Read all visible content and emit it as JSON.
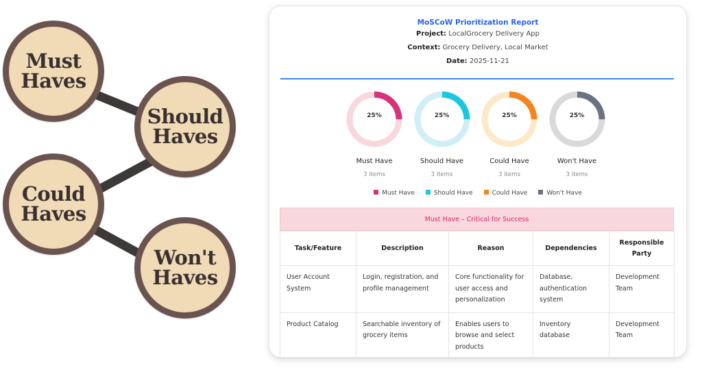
{
  "diagram": {
    "bubbles": [
      {
        "line1": "Must",
        "line2": "Haves"
      },
      {
        "line1": "Should",
        "line2": "Haves"
      },
      {
        "line1": "Could",
        "line2": "Haves"
      },
      {
        "line1": "Won't",
        "line2": "Haves"
      }
    ]
  },
  "report": {
    "title": "MoSCoW Prioritization Report",
    "project_label": "Project:",
    "project_value": "LocalGrocery Delivery App",
    "context_label": "Context:",
    "context_value": "Grocery Delivery, Local Market",
    "date_label": "Date:",
    "date_value": "2025-11-21"
  },
  "chart_data": {
    "type": "pie",
    "categories": [
      "Must Have",
      "Should Have",
      "Could Have",
      "Won't Have"
    ],
    "values": [
      25,
      25,
      25,
      25
    ],
    "labels": [
      "25%",
      "25%",
      "25%",
      "25%"
    ],
    "counts": [
      "3 items",
      "3 items",
      "3 items",
      "3 items"
    ],
    "colors": [
      "#d6337a",
      "#1cc6e0",
      "#f5851f",
      "#6b7280"
    ],
    "track_colors": [
      "#f8d7dd",
      "#cfeff5",
      "#fde9c8",
      "#d9d9d9"
    ],
    "legend": [
      "Must Have",
      "Should Have",
      "Could Have",
      "Won't Have"
    ]
  },
  "section": {
    "title": "Must Have – Critical for Success",
    "headers": [
      "Task/Feature",
      "Description",
      "Reason",
      "Dependencies",
      "Responsible Party"
    ],
    "rows": [
      [
        "User Account System",
        "Login, registration, and profile management",
        "Core functionality for user access and personalization",
        "Database, authentication system",
        "Development Team"
      ],
      [
        "Product Catalog",
        "Searchable inventory of grocery items",
        "Enables users to browse and select products",
        "Inventory database",
        "Development Team"
      ]
    ]
  }
}
